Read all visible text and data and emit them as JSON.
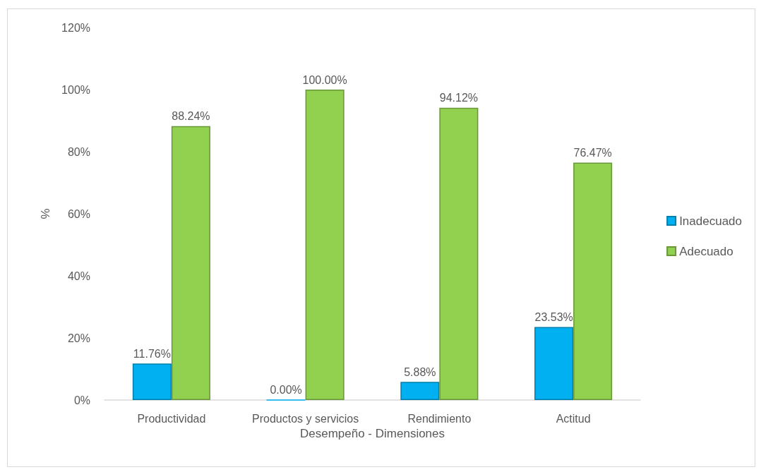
{
  "chart_data": {
    "type": "bar",
    "xlabel": "Desempeño - Dimensiones",
    "ylabel": "%",
    "categories": [
      "Productividad",
      "Productos y servicios",
      "Rendimiento",
      "Actitud"
    ],
    "series": [
      {
        "name": "Inadecuado",
        "color": "#00b0f0",
        "values": [
          11.76,
          0,
          5.88,
          23.53
        ],
        "value_labels": [
          "11.76%",
          "0.00%",
          "5.88%",
          "23.53%"
        ]
      },
      {
        "name": "Adecuado",
        "color": "#92d050",
        "values": [
          88.24,
          100,
          94.12,
          76.47
        ],
        "value_labels": [
          "88.24%",
          "100.00%",
          "94.12%",
          "76.47%"
        ]
      }
    ],
    "ylim": [
      0,
      120
    ],
    "yticks": [
      {
        "value": 0,
        "label": "0%"
      },
      {
        "value": 20,
        "label": "20%"
      },
      {
        "value": 40,
        "label": "40%"
      },
      {
        "value": 60,
        "label": "60%"
      },
      {
        "value": 80,
        "label": "80%"
      },
      {
        "value": 100,
        "label": "100%"
      },
      {
        "value": 120,
        "label": "120%"
      }
    ],
    "grid": false,
    "legend": "right"
  }
}
